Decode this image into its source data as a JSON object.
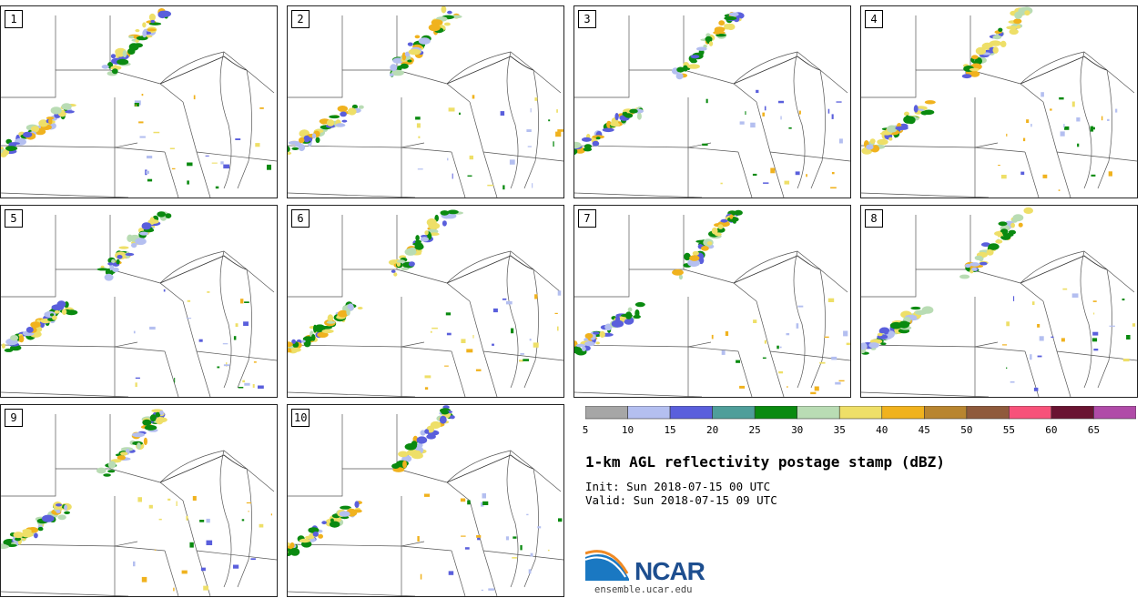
{
  "panels": [
    {
      "label": "1"
    },
    {
      "label": "2"
    },
    {
      "label": "3"
    },
    {
      "label": "4"
    },
    {
      "label": "5"
    },
    {
      "label": "6"
    },
    {
      "label": "7"
    },
    {
      "label": "8"
    },
    {
      "label": "9"
    },
    {
      "label": "10"
    }
  ],
  "colorbar": {
    "ticks": [
      "5",
      "10",
      "15",
      "20",
      "25",
      "30",
      "35",
      "40",
      "45",
      "50",
      "55",
      "60",
      "65"
    ],
    "colors": [
      "#a6a6a6",
      "#b4bff0",
      "#5a5fdc",
      "#4f9e9a",
      "#0a8a10",
      "#b9dcb4",
      "#eedf68",
      "#f0b21e",
      "#b88530",
      "#8f5a3c",
      "#f7527a",
      "#6a1432",
      "#b04ba8"
    ]
  },
  "title": "1-km AGL reflectivity postage stamp (dBZ)",
  "init": "Init: Sun 2018-07-15 00 UTC",
  "valid": "Valid: Sun 2018-07-15 09 UTC",
  "logo": {
    "text": "NCAR",
    "url": "ensemble.ucar.edu"
  }
}
